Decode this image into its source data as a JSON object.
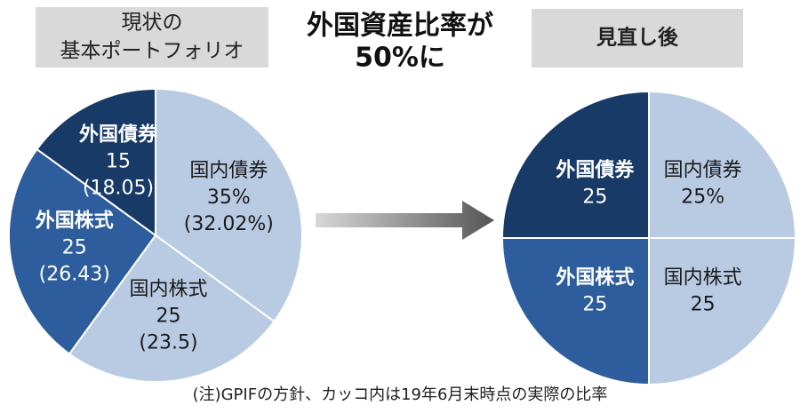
{
  "title_lines": [
    "外国資産比率が",
    "50%に"
  ],
  "note": "(注)GPIFの方針、カッコ内は19年6月末時点の実際の比率",
  "chart_data": [
    {
      "type": "pie",
      "title_lines": [
        "現状の",
        "基本ポートフォリオ"
      ],
      "categories": [
        "国内債券",
        "国内株式",
        "外国株式",
        "外国債券"
      ],
      "colors": [
        "#b9cbe3",
        "#b9cbe3",
        "#2d5d9c",
        "#183a66"
      ],
      "text_colors": [
        "#1a1a1a",
        "#1a1a1a",
        "#ffffff",
        "#ffffff"
      ],
      "values": [
        35,
        25,
        25,
        15
      ],
      "value_labels": [
        "35%",
        "25",
        "25",
        "15"
      ],
      "actual": {
        "values": [
          32.02,
          23.5,
          26.43,
          18.05
        ],
        "value_labels": [
          "(32.02%)",
          "(23.5)",
          "(26.43)",
          "(18.05)"
        ]
      }
    },
    {
      "type": "pie",
      "title_lines": [
        "見直し後"
      ],
      "categories": [
        "国内債券",
        "国内株式",
        "外国株式",
        "外国債券"
      ],
      "colors": [
        "#b9cbe3",
        "#b9cbe3",
        "#2d5d9c",
        "#183a66"
      ],
      "text_colors": [
        "#1a1a1a",
        "#1a1a1a",
        "#ffffff",
        "#ffffff"
      ],
      "values": [
        25,
        25,
        25,
        25
      ],
      "value_labels": [
        "25%",
        "25",
        "25",
        "25"
      ]
    }
  ]
}
